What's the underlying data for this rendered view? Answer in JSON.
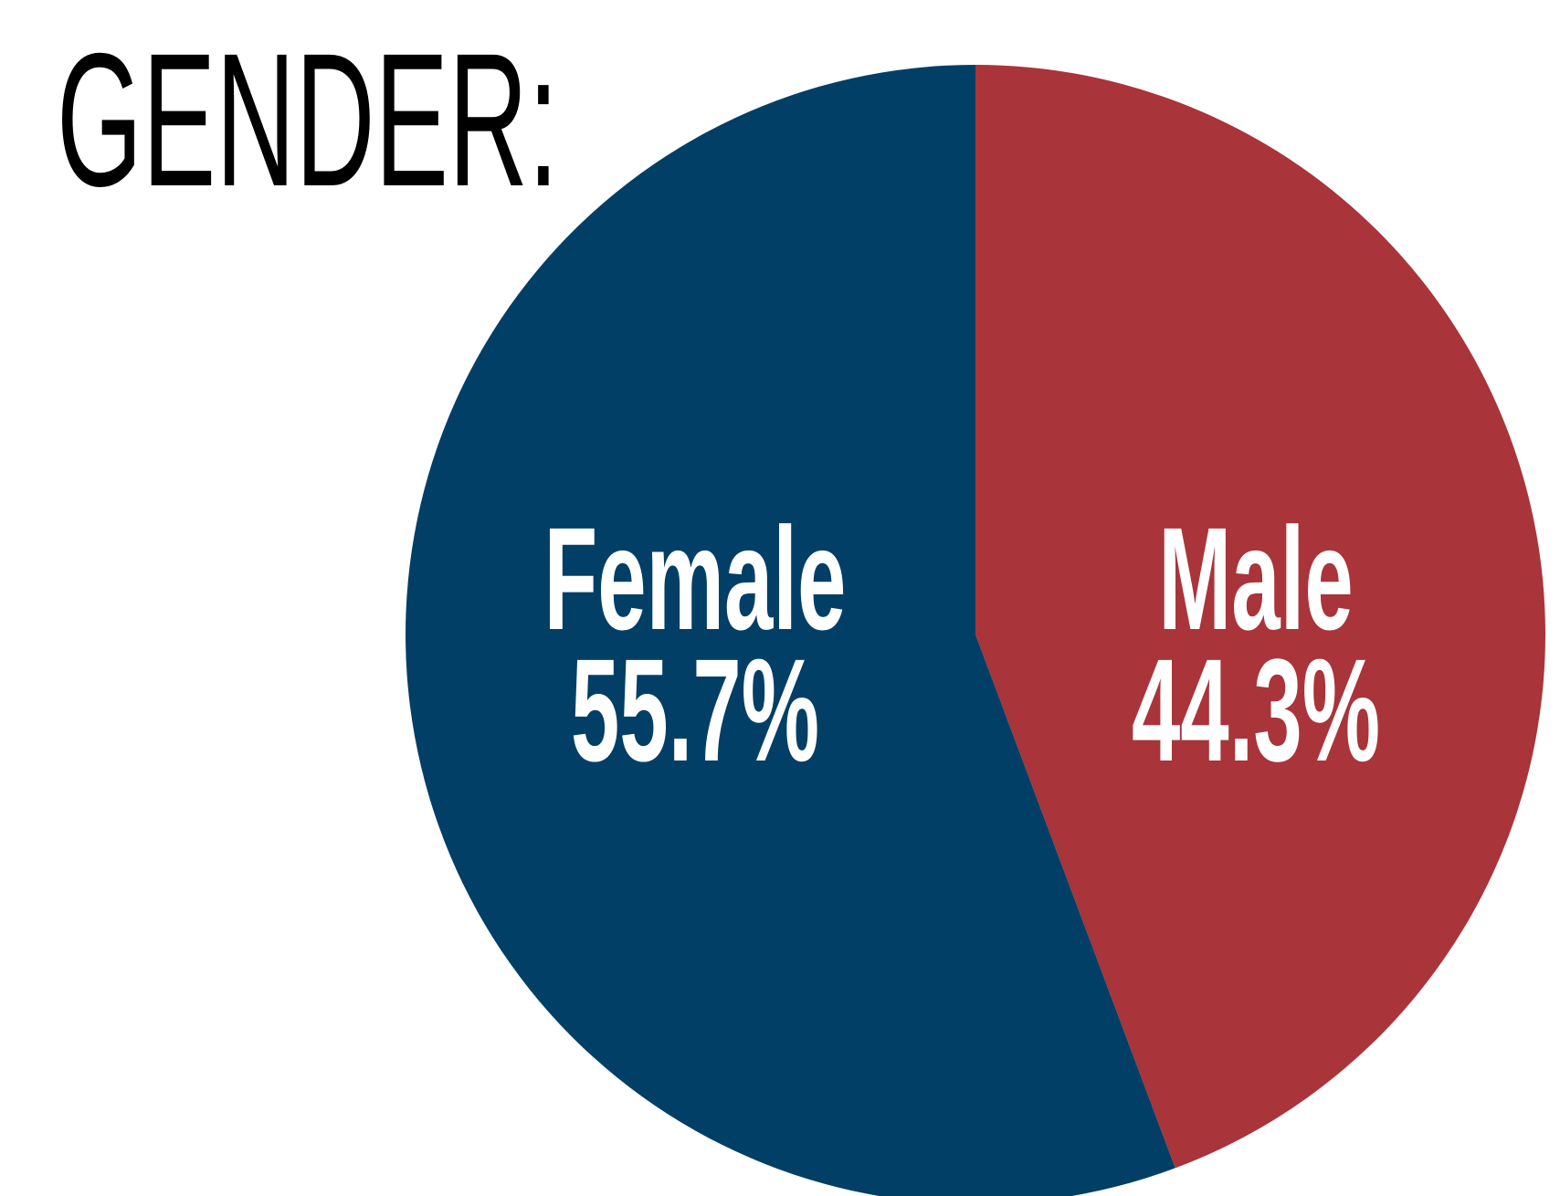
{
  "chart_data": {
    "type": "pie",
    "title": "GENDER:",
    "categories": [
      "Male",
      "Female"
    ],
    "values": [
      44.3,
      55.7
    ],
    "value_labels": [
      "44.3%",
      "55.7%"
    ],
    "colors": [
      "#a9343a",
      "#023f66"
    ]
  }
}
